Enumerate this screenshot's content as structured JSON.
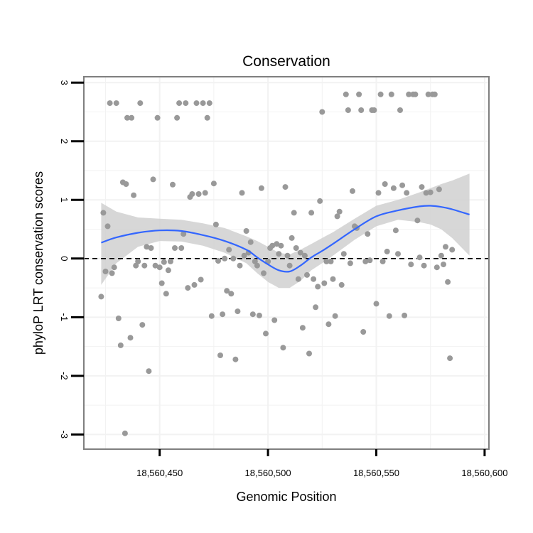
{
  "chart_data": {
    "type": "scatter",
    "title": "Conservation",
    "xlabel": "Genomic Position",
    "ylabel": "phyloP LRT conservation scores",
    "xlim": [
      18560415,
      18560602
    ],
    "ylim": [
      -3.25,
      3.1
    ],
    "x_ticks": [
      18560450,
      18560500,
      18560550,
      18560600
    ],
    "x_tick_labels": [
      "18,560,450",
      "18,560,500",
      "18,560,550",
      "18,560,600"
    ],
    "y_ticks": [
      -3,
      -2,
      -1,
      0,
      1,
      2,
      3
    ],
    "y_tick_labels": [
      "-3",
      "-2",
      "-1",
      "0",
      "1",
      "2",
      "3"
    ],
    "reference_line": {
      "y": 0,
      "style": "dashed",
      "color": "#000000"
    },
    "grid": true,
    "colors": {
      "points": "#999999",
      "smooth": "#3366FF",
      "band": "#d0d0d0",
      "panel_border": "#7f7f7f",
      "grid": "#f2f2f2"
    },
    "points": [
      {
        "x": 18560423,
        "y": -0.65
      },
      {
        "x": 18560424,
        "y": 0.78
      },
      {
        "x": 18560425,
        "y": -0.22
      },
      {
        "x": 18560426,
        "y": 0.55
      },
      {
        "x": 18560427,
        "y": 2.65
      },
      {
        "x": 18560428,
        "y": -0.25
      },
      {
        "x": 18560429,
        "y": -0.15
      },
      {
        "x": 18560430,
        "y": 2.65
      },
      {
        "x": 18560431,
        "y": -1.02
      },
      {
        "x": 18560432,
        "y": -1.48
      },
      {
        "x": 18560433,
        "y": 1.3
      },
      {
        "x": 18560434,
        "y": -2.98
      },
      {
        "x": 18560434.5,
        "y": 1.27
      },
      {
        "x": 18560435,
        "y": 2.4
      },
      {
        "x": 18560436.5,
        "y": -1.35
      },
      {
        "x": 18560437,
        "y": 2.4
      },
      {
        "x": 18560438,
        "y": 1.08
      },
      {
        "x": 18560439,
        "y": -0.12
      },
      {
        "x": 18560440,
        "y": -0.05
      },
      {
        "x": 18560441,
        "y": 2.65
      },
      {
        "x": 18560442,
        "y": -1.13
      },
      {
        "x": 18560443,
        "y": -0.12
      },
      {
        "x": 18560444,
        "y": 0.2
      },
      {
        "x": 18560445,
        "y": -1.92
      },
      {
        "x": 18560446,
        "y": 0.18
      },
      {
        "x": 18560447,
        "y": 1.35
      },
      {
        "x": 18560448,
        "y": -0.12
      },
      {
        "x": 18560449,
        "y": 2.4
      },
      {
        "x": 18560450,
        "y": -0.15
      },
      {
        "x": 18560451,
        "y": -0.42
      },
      {
        "x": 18560452,
        "y": -0.06
      },
      {
        "x": 18560453,
        "y": -0.6
      },
      {
        "x": 18560454,
        "y": -0.2
      },
      {
        "x": 18560455,
        "y": -0.05
      },
      {
        "x": 18560456,
        "y": 1.26
      },
      {
        "x": 18560457,
        "y": 0.18
      },
      {
        "x": 18560458,
        "y": 2.4
      },
      {
        "x": 18560459,
        "y": 2.65
      },
      {
        "x": 18560460,
        "y": 0.18
      },
      {
        "x": 18560461,
        "y": 0.42
      },
      {
        "x": 18560462,
        "y": 2.65
      },
      {
        "x": 18560463,
        "y": -0.5
      },
      {
        "x": 18560464,
        "y": 1.05
      },
      {
        "x": 18560465,
        "y": 1.1
      },
      {
        "x": 18560466,
        "y": -0.45
      },
      {
        "x": 18560467,
        "y": 2.65
      },
      {
        "x": 18560468,
        "y": 1.1
      },
      {
        "x": 18560469,
        "y": -0.36
      },
      {
        "x": 18560470,
        "y": 2.65
      },
      {
        "x": 18560471,
        "y": 1.12
      },
      {
        "x": 18560472,
        "y": 2.4
      },
      {
        "x": 18560473,
        "y": 2.65
      },
      {
        "x": 18560474,
        "y": -0.98
      },
      {
        "x": 18560475,
        "y": 1.28
      },
      {
        "x": 18560476,
        "y": 0.58
      },
      {
        "x": 18560477,
        "y": -0.04
      },
      {
        "x": 18560478,
        "y": -1.65
      },
      {
        "x": 18560479,
        "y": -0.95
      },
      {
        "x": 18560480,
        "y": 0.0
      },
      {
        "x": 18560481,
        "y": -0.55
      },
      {
        "x": 18560482,
        "y": 0.15
      },
      {
        "x": 18560483,
        "y": -0.6
      },
      {
        "x": 18560484,
        "y": 0.0
      },
      {
        "x": 18560485,
        "y": -1.72
      },
      {
        "x": 18560486,
        "y": -0.9
      },
      {
        "x": 18560487,
        "y": -0.12
      },
      {
        "x": 18560488,
        "y": 1.12
      },
      {
        "x": 18560489,
        "y": 0.05
      },
      {
        "x": 18560490,
        "y": 0.47
      },
      {
        "x": 18560491,
        "y": 0.1
      },
      {
        "x": 18560492,
        "y": 0.28
      },
      {
        "x": 18560493,
        "y": -0.95
      },
      {
        "x": 18560494,
        "y": -0.05
      },
      {
        "x": 18560495,
        "y": -0.12
      },
      {
        "x": 18560496,
        "y": -0.97
      },
      {
        "x": 18560497,
        "y": 1.2
      },
      {
        "x": 18560498,
        "y": -0.25
      },
      {
        "x": 18560499,
        "y": -1.28
      },
      {
        "x": 18560500,
        "y": -0.05
      },
      {
        "x": 18560501,
        "y": 0.18
      },
      {
        "x": 18560502,
        "y": 0.22
      },
      {
        "x": 18560503,
        "y": -1.05
      },
      {
        "x": 18560504,
        "y": 0.25
      },
      {
        "x": 18560505,
        "y": 0.08
      },
      {
        "x": 18560506,
        "y": 0.22
      },
      {
        "x": 18560507,
        "y": -1.52
      },
      {
        "x": 18560508,
        "y": 1.22
      },
      {
        "x": 18560509,
        "y": 0.05
      },
      {
        "x": 18560510,
        "y": -0.12
      },
      {
        "x": 18560511,
        "y": 0.35
      },
      {
        "x": 18560512,
        "y": 0.78
      },
      {
        "x": 18560513,
        "y": 0.18
      },
      {
        "x": 18560514,
        "y": -0.35
      },
      {
        "x": 18560515,
        "y": 0.1
      },
      {
        "x": 18560516,
        "y": -1.18
      },
      {
        "x": 18560517,
        "y": 0.05
      },
      {
        "x": 18560518,
        "y": -0.28
      },
      {
        "x": 18560519,
        "y": -1.62
      },
      {
        "x": 18560520,
        "y": 0.78
      },
      {
        "x": 18560521,
        "y": -0.35
      },
      {
        "x": 18560522,
        "y": -0.83
      },
      {
        "x": 18560523,
        "y": -0.48
      },
      {
        "x": 18560524,
        "y": 0.98
      },
      {
        "x": 18560525,
        "y": 2.5
      },
      {
        "x": 18560526,
        "y": -0.42
      },
      {
        "x": 18560527,
        "y": -0.05
      },
      {
        "x": 18560528,
        "y": -1.12
      },
      {
        "x": 18560529,
        "y": -0.05
      },
      {
        "x": 18560530,
        "y": -0.35
      },
      {
        "x": 18560531,
        "y": -0.98
      },
      {
        "x": 18560532,
        "y": 0.72
      },
      {
        "x": 18560533,
        "y": 0.8
      },
      {
        "x": 18560534,
        "y": -0.45
      },
      {
        "x": 18560535,
        "y": 0.08
      },
      {
        "x": 18560536,
        "y": 2.8
      },
      {
        "x": 18560537,
        "y": 2.53
      },
      {
        "x": 18560538,
        "y": -0.08
      },
      {
        "x": 18560539,
        "y": 1.15
      },
      {
        "x": 18560540,
        "y": 0.55
      },
      {
        "x": 18560541,
        "y": 0.52
      },
      {
        "x": 18560542,
        "y": 2.8
      },
      {
        "x": 18560543,
        "y": 2.53
      },
      {
        "x": 18560544,
        "y": -1.25
      },
      {
        "x": 18560545,
        "y": -0.05
      },
      {
        "x": 18560546,
        "y": 0.42
      },
      {
        "x": 18560547,
        "y": -0.03
      },
      {
        "x": 18560548,
        "y": 2.53
      },
      {
        "x": 18560549,
        "y": 2.53
      },
      {
        "x": 18560550,
        "y": -0.77
      },
      {
        "x": 18560551,
        "y": 1.12
      },
      {
        "x": 18560552,
        "y": 2.8
      },
      {
        "x": 18560553,
        "y": -0.05
      },
      {
        "x": 18560554,
        "y": 1.27
      },
      {
        "x": 18560555,
        "y": 0.12
      },
      {
        "x": 18560556,
        "y": -0.98
      },
      {
        "x": 18560557,
        "y": 2.8
      },
      {
        "x": 18560558,
        "y": 1.2
      },
      {
        "x": 18560559,
        "y": 0.48
      },
      {
        "x": 18560560,
        "y": 0.08
      },
      {
        "x": 18560561,
        "y": 2.53
      },
      {
        "x": 18560562,
        "y": 1.25
      },
      {
        "x": 18560563,
        "y": -0.97
      },
      {
        "x": 18560564,
        "y": 1.12
      },
      {
        "x": 18560565,
        "y": 2.8
      },
      {
        "x": 18560566,
        "y": -0.1
      },
      {
        "x": 18560567,
        "y": 2.8
      },
      {
        "x": 18560568,
        "y": 2.8
      },
      {
        "x": 18560569,
        "y": 0.65
      },
      {
        "x": 18560570,
        "y": 0.02
      },
      {
        "x": 18560571,
        "y": 1.22
      },
      {
        "x": 18560572,
        "y": -0.12
      },
      {
        "x": 18560573,
        "y": 1.12
      },
      {
        "x": 18560574,
        "y": 2.8
      },
      {
        "x": 18560575,
        "y": 1.13
      },
      {
        "x": 18560576,
        "y": 2.8
      },
      {
        "x": 18560577,
        "y": 2.8
      },
      {
        "x": 18560578,
        "y": -0.15
      },
      {
        "x": 18560579,
        "y": 1.18
      },
      {
        "x": 18560580,
        "y": 0.05
      },
      {
        "x": 18560581,
        "y": -0.1
      },
      {
        "x": 18560582,
        "y": 0.2
      },
      {
        "x": 18560583,
        "y": -0.4
      },
      {
        "x": 18560584,
        "y": -1.7
      },
      {
        "x": 18560585,
        "y": 0.15
      }
    ],
    "smooth": {
      "x": [
        18560423,
        18560430,
        18560440,
        18560450,
        18560460,
        18560470,
        18560480,
        18560490,
        18560495,
        18560500,
        18560505,
        18560510,
        18560515,
        18560520,
        18560525,
        18560530,
        18560540,
        18560550,
        18560560,
        18560570,
        18560575,
        18560580,
        18560585,
        18560593
      ],
      "y": [
        0.27,
        0.36,
        0.44,
        0.48,
        0.47,
        0.4,
        0.3,
        0.15,
        0.02,
        -0.1,
        -0.2,
        -0.22,
        -0.12,
        0.02,
        0.13,
        0.25,
        0.5,
        0.72,
        0.82,
        0.89,
        0.9,
        0.88,
        0.84,
        0.75
      ],
      "lower": [
        -0.45,
        -0.08,
        0.2,
        0.3,
        0.29,
        0.22,
        0.1,
        -0.08,
        -0.25,
        -0.4,
        -0.5,
        -0.5,
        -0.38,
        -0.2,
        -0.08,
        0.05,
        0.32,
        0.55,
        0.66,
        0.62,
        0.58,
        0.5,
        0.35,
        0.05
      ],
      "upper": [
        0.95,
        0.8,
        0.7,
        0.68,
        0.66,
        0.6,
        0.52,
        0.38,
        0.3,
        0.2,
        0.1,
        0.07,
        0.15,
        0.25,
        0.35,
        0.45,
        0.68,
        0.9,
        1.0,
        1.13,
        1.2,
        1.27,
        1.33,
        1.45
      ]
    }
  }
}
